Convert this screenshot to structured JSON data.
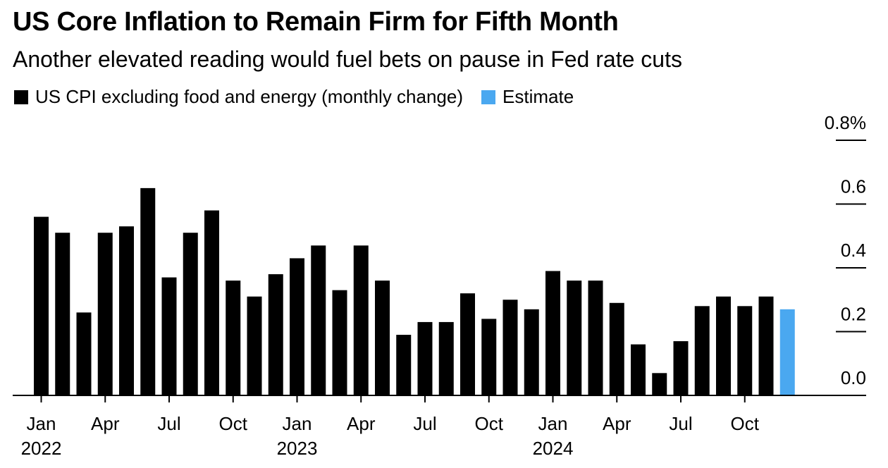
{
  "title": "US Core Inflation to Remain Firm for Fifth Month",
  "subtitle": "Another elevated reading would fuel bets on pause in Fed rate cuts",
  "legend": [
    {
      "label": "US CPI excluding food and energy (monthly change)",
      "color": "#000000"
    },
    {
      "label": "Estimate",
      "color": "#4AA8F0"
    }
  ],
  "chart_data": {
    "type": "bar",
    "categories": [
      "Jan 2022",
      "Feb 2022",
      "Mar 2022",
      "Apr 2022",
      "May 2022",
      "Jun 2022",
      "Jul 2022",
      "Aug 2022",
      "Sep 2022",
      "Oct 2022",
      "Nov 2022",
      "Dec 2022",
      "Jan 2023",
      "Feb 2023",
      "Mar 2023",
      "Apr 2023",
      "May 2023",
      "Jun 2023",
      "Jul 2023",
      "Aug 2023",
      "Sep 2023",
      "Oct 2023",
      "Nov 2023",
      "Dec 2023",
      "Jan 2024",
      "Feb 2024",
      "Mar 2024",
      "Apr 2024",
      "May 2024",
      "Jun 2024",
      "Jul 2024",
      "Aug 2024",
      "Sep 2024",
      "Oct 2024",
      "Nov 2024",
      "Dec 2024"
    ],
    "series": [
      {
        "name": "US CPI excluding food and energy (monthly change)",
        "color": "#000000",
        "values": [
          0.56,
          0.51,
          0.26,
          0.51,
          0.53,
          0.65,
          0.37,
          0.51,
          0.58,
          0.36,
          0.31,
          0.38,
          0.43,
          0.47,
          0.33,
          0.47,
          0.36,
          0.19,
          0.23,
          0.23,
          0.32,
          0.24,
          0.3,
          0.27,
          0.39,
          0.36,
          0.36,
          0.29,
          0.16,
          0.07,
          0.17,
          0.28,
          0.31,
          0.28,
          0.31,
          null
        ]
      },
      {
        "name": "Estimate",
        "color": "#4AA8F0",
        "values": [
          null,
          null,
          null,
          null,
          null,
          null,
          null,
          null,
          null,
          null,
          null,
          null,
          null,
          null,
          null,
          null,
          null,
          null,
          null,
          null,
          null,
          null,
          null,
          null,
          null,
          null,
          null,
          null,
          null,
          null,
          null,
          null,
          null,
          null,
          null,
          0.27
        ]
      }
    ],
    "y_ticks": [
      "0.0",
      "0.2",
      "0.4",
      "0.6",
      "0.8%"
    ],
    "y_tick_values": [
      0.0,
      0.2,
      0.4,
      0.6,
      0.8
    ],
    "ylim": [
      0,
      0.8
    ],
    "x_ticks": [
      {
        "index": 0,
        "label": "Jan",
        "year": "2022"
      },
      {
        "index": 3,
        "label": "Apr",
        "year": ""
      },
      {
        "index": 6,
        "label": "Jul",
        "year": ""
      },
      {
        "index": 9,
        "label": "Oct",
        "year": ""
      },
      {
        "index": 12,
        "label": "Jan",
        "year": "2023"
      },
      {
        "index": 15,
        "label": "Apr",
        "year": ""
      },
      {
        "index": 18,
        "label": "Jul",
        "year": ""
      },
      {
        "index": 21,
        "label": "Oct",
        "year": ""
      },
      {
        "index": 24,
        "label": "Jan",
        "year": "2024"
      },
      {
        "index": 27,
        "label": "Apr",
        "year": ""
      },
      {
        "index": 30,
        "label": "Jul",
        "year": ""
      },
      {
        "index": 33,
        "label": "Oct",
        "year": ""
      }
    ],
    "xlabel": "",
    "ylabel": "",
    "grid": false,
    "legend_position": "top-left"
  }
}
